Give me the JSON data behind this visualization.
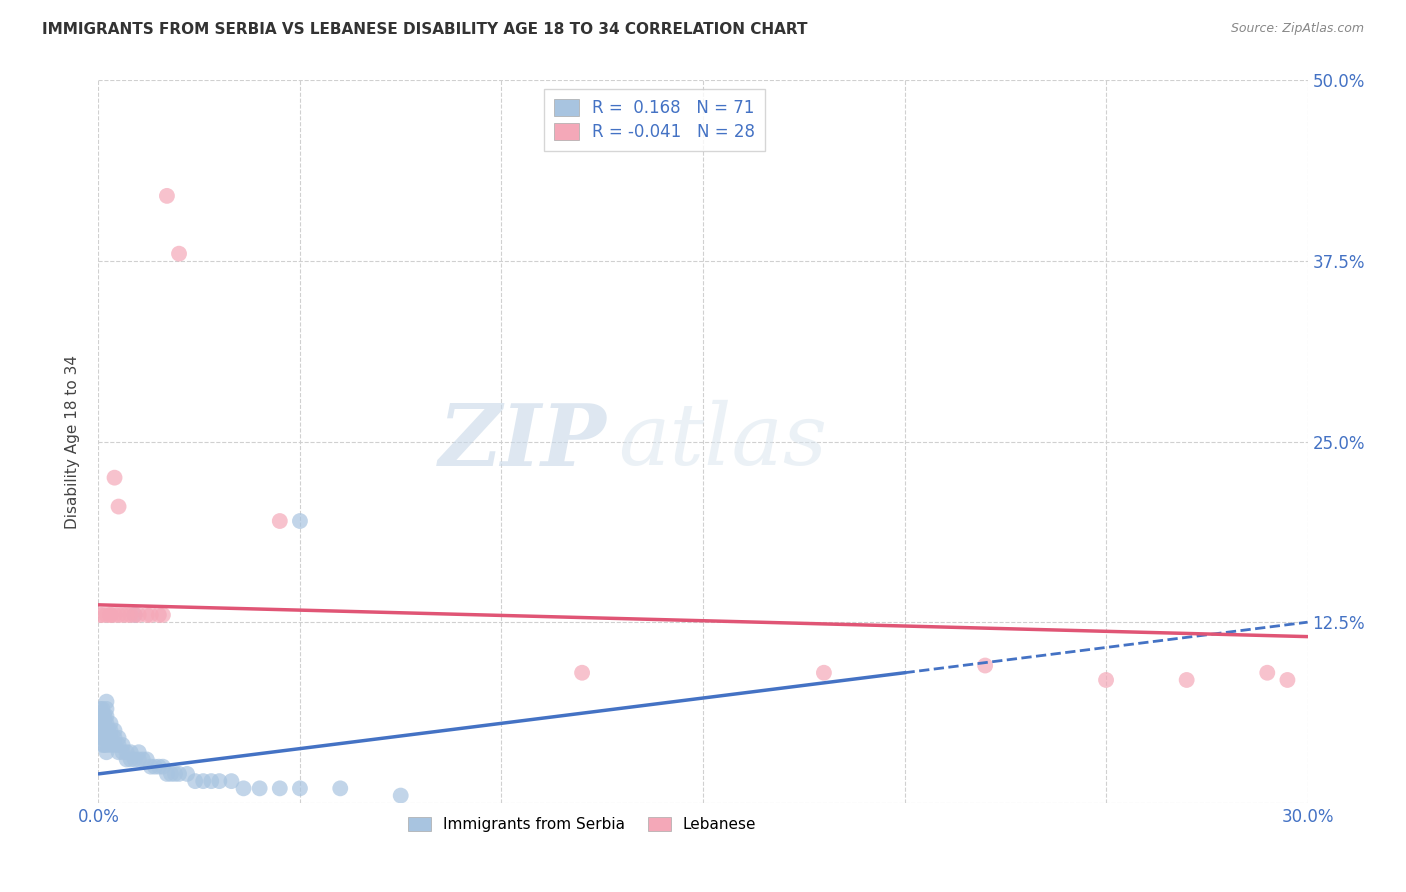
{
  "title": "IMMIGRANTS FROM SERBIA VS LEBANESE DISABILITY AGE 18 TO 34 CORRELATION CHART",
  "source": "Source: ZipAtlas.com",
  "xlabel": "",
  "ylabel": "Disability Age 18 to 34",
  "xlim": [
    0.0,
    0.3
  ],
  "ylim": [
    0.0,
    0.5
  ],
  "xticks": [
    0.0,
    0.05,
    0.1,
    0.15,
    0.2,
    0.25,
    0.3
  ],
  "xticklabels": [
    "0.0%",
    "",
    "",
    "",
    "",
    "",
    "30.0%"
  ],
  "yticks": [
    0.0,
    0.125,
    0.25,
    0.375,
    0.5
  ],
  "yticklabels": [
    "",
    "12.5%",
    "25.0%",
    "37.5%",
    "50.0%"
  ],
  "serbia_color": "#a8c4e0",
  "lebanese_color": "#f4a8b8",
  "serbia_line_color": "#4472c4",
  "lebanese_line_color": "#e05575",
  "serbia_R": 0.168,
  "serbia_N": 71,
  "lebanese_R": -0.041,
  "lebanese_N": 28,
  "watermark_zip": "ZIP",
  "watermark_atlas": "atlas",
  "serbia_x": [
    0.0005,
    0.0005,
    0.0005,
    0.0008,
    0.0008,
    0.001,
    0.001,
    0.001,
    0.001,
    0.001,
    0.001,
    0.0012,
    0.0012,
    0.0015,
    0.0015,
    0.0015,
    0.0015,
    0.0015,
    0.002,
    0.002,
    0.002,
    0.002,
    0.002,
    0.002,
    0.002,
    0.002,
    0.0025,
    0.0025,
    0.003,
    0.003,
    0.003,
    0.003,
    0.004,
    0.004,
    0.004,
    0.005,
    0.005,
    0.005,
    0.006,
    0.006,
    0.007,
    0.007,
    0.008,
    0.008,
    0.009,
    0.01,
    0.01,
    0.011,
    0.012,
    0.013,
    0.014,
    0.015,
    0.016,
    0.017,
    0.018,
    0.019,
    0.02,
    0.022,
    0.024,
    0.026,
    0.028,
    0.03,
    0.033,
    0.036,
    0.04,
    0.045,
    0.05,
    0.06,
    0.075,
    0.009,
    0.05
  ],
  "serbia_y": [
    0.055,
    0.06,
    0.065,
    0.05,
    0.055,
    0.04,
    0.045,
    0.05,
    0.055,
    0.06,
    0.065,
    0.05,
    0.055,
    0.04,
    0.045,
    0.05,
    0.055,
    0.06,
    0.035,
    0.04,
    0.045,
    0.05,
    0.055,
    0.06,
    0.065,
    0.07,
    0.045,
    0.05,
    0.04,
    0.045,
    0.05,
    0.055,
    0.04,
    0.045,
    0.05,
    0.035,
    0.04,
    0.045,
    0.035,
    0.04,
    0.03,
    0.035,
    0.03,
    0.035,
    0.03,
    0.03,
    0.035,
    0.03,
    0.03,
    0.025,
    0.025,
    0.025,
    0.025,
    0.02,
    0.02,
    0.02,
    0.02,
    0.02,
    0.015,
    0.015,
    0.015,
    0.015,
    0.015,
    0.01,
    0.01,
    0.01,
    0.01,
    0.01,
    0.005,
    0.13,
    0.195
  ],
  "lebanese_x": [
    0.0005,
    0.001,
    0.002,
    0.003,
    0.003,
    0.004,
    0.004,
    0.005,
    0.005,
    0.006,
    0.007,
    0.008,
    0.009,
    0.01,
    0.012,
    0.013,
    0.015,
    0.016,
    0.017,
    0.02,
    0.045,
    0.12,
    0.18,
    0.22,
    0.25,
    0.27,
    0.29,
    0.295
  ],
  "lebanese_y": [
    0.13,
    0.13,
    0.13,
    0.13,
    0.13,
    0.13,
    0.225,
    0.13,
    0.205,
    0.13,
    0.13,
    0.13,
    0.13,
    0.13,
    0.13,
    0.13,
    0.13,
    0.13,
    0.42,
    0.38,
    0.195,
    0.09,
    0.09,
    0.095,
    0.085,
    0.085,
    0.09,
    0.085
  ]
}
